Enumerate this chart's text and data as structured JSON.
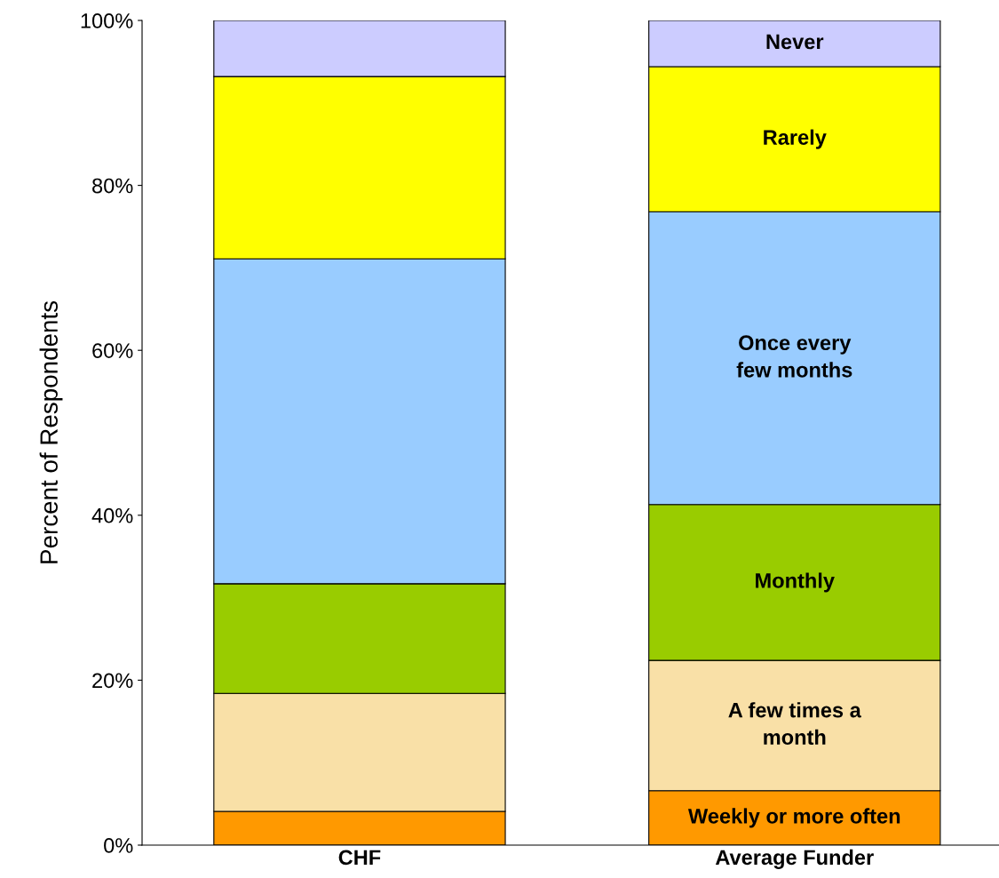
{
  "chart_data": {
    "type": "bar",
    "stacked": true,
    "ylabel": "Percent of Respondents",
    "categories": [
      "CHF",
      "Average Funder"
    ],
    "ylim": [
      0,
      100
    ],
    "yticks": [
      {
        "value": 0,
        "label": "0%"
      },
      {
        "value": 20,
        "label": "20%"
      },
      {
        "value": 40,
        "label": "40%"
      },
      {
        "value": 60,
        "label": "60%"
      },
      {
        "value": 80,
        "label": "80%"
      },
      {
        "value": 100,
        "label": "100%"
      }
    ],
    "grid": false,
    "legend": false,
    "series": [
      {
        "name": "Weekly or more often",
        "color": "#ff9900",
        "values": [
          4.1,
          6.6
        ]
      },
      {
        "name": "A few times a\nmonth",
        "color": "#f9e0a7",
        "values": [
          14.3,
          15.8
        ]
      },
      {
        "name": "Monthly",
        "color": "#99cc00",
        "values": [
          13.3,
          18.9
        ]
      },
      {
        "name": "Once every\nfew months",
        "color": "#99ccff",
        "values": [
          39.4,
          35.5
        ]
      },
      {
        "name": "Rarely",
        "color": "#ffff00",
        "values": [
          22.1,
          17.6
        ]
      },
      {
        "name": "Never",
        "color": "#ccccff",
        "values": [
          6.8,
          5.6
        ]
      }
    ]
  }
}
